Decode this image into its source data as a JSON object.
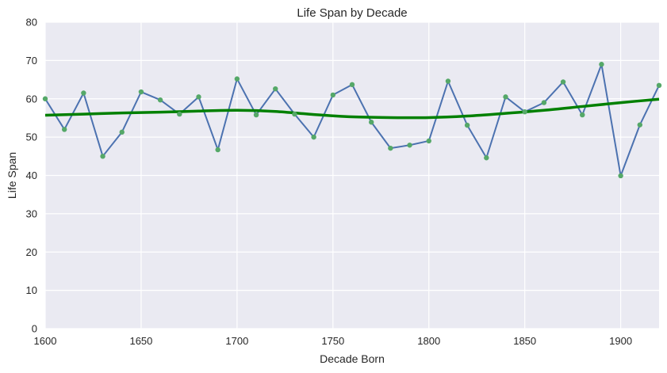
{
  "chart_data": {
    "type": "line",
    "title": "Life Span by Decade",
    "xlabel": "Decade Born",
    "ylabel": "Life Span",
    "xlim": [
      1600,
      1920
    ],
    "ylim": [
      0,
      80
    ],
    "x_ticks": [
      1600,
      1650,
      1700,
      1750,
      1800,
      1850,
      1900
    ],
    "y_ticks": [
      0,
      10,
      20,
      30,
      40,
      50,
      60,
      70,
      80
    ],
    "grid": true,
    "legend": "none",
    "colors": {
      "background": "#EAEAF2",
      "grid": "#FFFFFF",
      "line": "#4C72B0",
      "points": "#55A868",
      "trend": "#008000"
    },
    "series": [
      {
        "type": "line+markers",
        "x": [
          1600,
          1610,
          1620,
          1630,
          1640,
          1650,
          1660,
          1670,
          1680,
          1690,
          1700,
          1710,
          1720,
          1730,
          1740,
          1750,
          1760,
          1770,
          1780,
          1790,
          1800,
          1810,
          1820,
          1830,
          1840,
          1850,
          1860,
          1870,
          1880,
          1890,
          1900,
          1910,
          1920
        ],
        "y": [
          60.0,
          52.0,
          61.5,
          45.0,
          51.3,
          61.8,
          59.7,
          56.0,
          60.5,
          46.7,
          65.2,
          55.8,
          62.6,
          56.0,
          50.0,
          61.0,
          63.7,
          53.9,
          47.1,
          47.9,
          49.0,
          64.6,
          53.1,
          44.6,
          60.5,
          56.6,
          59.0,
          64.4,
          55.8,
          69.0,
          39.9,
          53.2,
          63.5
        ]
      },
      {
        "type": "trend",
        "x": [
          1600,
          1620,
          1640,
          1660,
          1680,
          1700,
          1720,
          1740,
          1760,
          1780,
          1800,
          1820,
          1840,
          1860,
          1880,
          1900,
          1920
        ],
        "y": [
          55.7,
          56.0,
          56.3,
          56.5,
          56.8,
          57.0,
          56.7,
          55.9,
          55.3,
          55.1,
          55.1,
          55.5,
          56.2,
          57.0,
          58.0,
          59.0,
          59.9
        ]
      }
    ]
  }
}
